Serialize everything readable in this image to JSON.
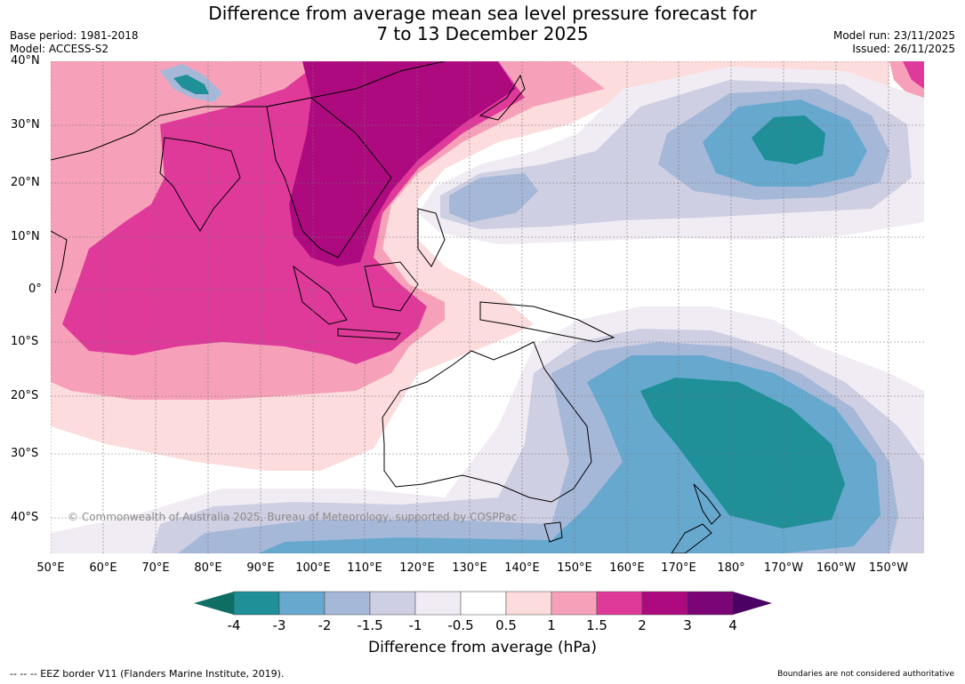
{
  "title_line1": "Difference from average mean sea level pressure forecast for",
  "title_line2": "7 to 13 December 2025",
  "base_period": "Base period: 1981-2018",
  "model": "Model: ACCESS-S2",
  "model_run": "Model run: 23/11/2025",
  "issued": "Issued: 26/11/2025",
  "copyright": "© Commonwealth of Australia 2025, Bureau of Meteorology, supported by COSPPac",
  "latitude_labels": [
    "40°N",
    "30°N",
    "20°N",
    "10°N",
    "0°",
    "10°S",
    "20°S",
    "30°S",
    "40°S"
  ],
  "longitude_labels": [
    "50°E",
    "60°E",
    "70°E",
    "80°E",
    "90°E",
    "100°E",
    "110°E",
    "120°E",
    "130°E",
    "140°E",
    "150°E",
    "160°E",
    "170°E",
    "180°",
    "170°W",
    "160°W",
    "150°W"
  ],
  "colorbar": {
    "ticks": [
      "-4",
      "-3",
      "-2",
      "-1.5",
      "-1",
      "-0.5",
      "0.5",
      "1",
      "1.5",
      "2",
      "3",
      "4"
    ],
    "colors": [
      "#0f6e63",
      "#1f8f98",
      "#67a8cf",
      "#a6b8d8",
      "#cfcfe3",
      "#f1ecf4",
      "#ffffff",
      "#fcdcdc",
      "#f6a1b9",
      "#df3a9a",
      "#ad0a7f",
      "#7b0477",
      "#4b0063"
    ],
    "title": "Difference from average (hPa)"
  },
  "footer_left": "--  --  -- EEZ border V11 (Flanders Marine Institute, 2019).",
  "footer_right": "Boundaries are not considered authoritative"
}
